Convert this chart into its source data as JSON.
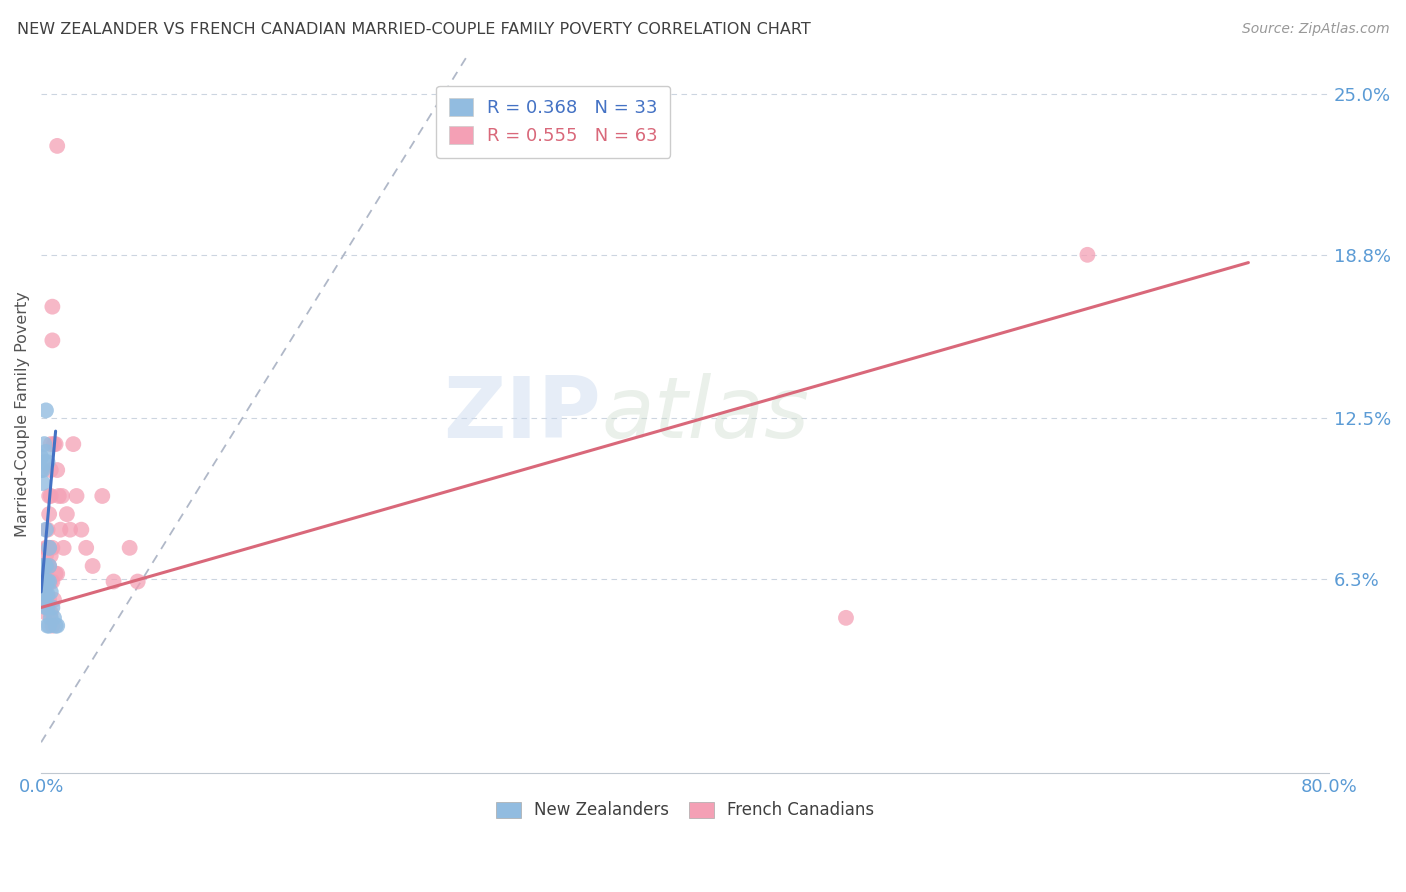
{
  "title": "NEW ZEALANDER VS FRENCH CANADIAN MARRIED-COUPLE FAMILY POVERTY CORRELATION CHART",
  "source": "Source: ZipAtlas.com",
  "ylabel": "Married-Couple Family Poverty",
  "nz_color": "#92bce0",
  "fc_color": "#f4a0b5",
  "nz_line_color": "#4472c4",
  "fc_line_color": "#d9687a",
  "dashed_line_color": "#b0b8c8",
  "title_color": "#404040",
  "axis_label_color": "#5b9bd5",
  "grid_color": "#ccd5e0",
  "xlim": [
    0.0,
    0.8
  ],
  "ylim": [
    -0.012,
    0.265
  ],
  "ytick_vals": [
    0.0,
    0.063,
    0.125,
    0.188,
    0.25
  ],
  "ytick_labels": [
    "",
    "6.3%",
    "12.5%",
    "18.8%",
    "25.0%"
  ],
  "nz_points_x": [
    0.0,
    0.0,
    0.0,
    0.001,
    0.001,
    0.001,
    0.001,
    0.002,
    0.002,
    0.002,
    0.002,
    0.003,
    0.003,
    0.003,
    0.003,
    0.003,
    0.003,
    0.003,
    0.004,
    0.004,
    0.004,
    0.004,
    0.004,
    0.005,
    0.005,
    0.005,
    0.005,
    0.006,
    0.006,
    0.007,
    0.008,
    0.009,
    0.01
  ],
  "nz_points_y": [
    0.11,
    0.105,
    0.065,
    0.105,
    0.1,
    0.068,
    0.062,
    0.115,
    0.108,
    0.062,
    0.057,
    0.128,
    0.112,
    0.082,
    0.068,
    0.062,
    0.057,
    0.052,
    0.108,
    0.062,
    0.057,
    0.052,
    0.045,
    0.075,
    0.068,
    0.062,
    0.045,
    0.058,
    0.048,
    0.052,
    0.048,
    0.045,
    0.045
  ],
  "fc_points_x": [
    0.0,
    0.0,
    0.0,
    0.001,
    0.001,
    0.001,
    0.002,
    0.002,
    0.002,
    0.002,
    0.003,
    0.003,
    0.003,
    0.003,
    0.003,
    0.003,
    0.003,
    0.004,
    0.004,
    0.004,
    0.004,
    0.004,
    0.005,
    0.005,
    0.005,
    0.005,
    0.005,
    0.005,
    0.006,
    0.006,
    0.006,
    0.006,
    0.006,
    0.006,
    0.007,
    0.007,
    0.007,
    0.007,
    0.007,
    0.008,
    0.008,
    0.009,
    0.009,
    0.01,
    0.01,
    0.01,
    0.011,
    0.012,
    0.013,
    0.014,
    0.016,
    0.018,
    0.02,
    0.022,
    0.025,
    0.028,
    0.032,
    0.038,
    0.045,
    0.055,
    0.06,
    0.5,
    0.65
  ],
  "fc_points_y": [
    0.068,
    0.063,
    0.058,
    0.068,
    0.063,
    0.058,
    0.068,
    0.063,
    0.058,
    0.053,
    0.075,
    0.072,
    0.068,
    0.063,
    0.06,
    0.055,
    0.05,
    0.082,
    0.075,
    0.068,
    0.063,
    0.055,
    0.095,
    0.088,
    0.075,
    0.068,
    0.062,
    0.055,
    0.115,
    0.105,
    0.095,
    0.072,
    0.062,
    0.05,
    0.168,
    0.155,
    0.075,
    0.062,
    0.045,
    0.115,
    0.055,
    0.115,
    0.065,
    0.23,
    0.105,
    0.065,
    0.095,
    0.082,
    0.095,
    0.075,
    0.088,
    0.082,
    0.115,
    0.095,
    0.082,
    0.075,
    0.068,
    0.095,
    0.062,
    0.075,
    0.062,
    0.048,
    0.188
  ],
  "nz_line": {
    "x0": 0.0,
    "x1": 0.009,
    "y0": 0.058,
    "y1": 0.12
  },
  "fc_line": {
    "x0": 0.0,
    "x1": 0.75,
    "y0": 0.052,
    "y1": 0.185
  },
  "dash_line": {
    "x0": 0.0,
    "x1": 0.265,
    "y0": 0.0,
    "y1": 0.265
  },
  "watermark_part1": "ZIP",
  "watermark_part2": "atlas",
  "legend_nz_label": "R = 0.368   N = 33",
  "legend_fc_label": "R = 0.555   N = 63",
  "bottom_legend_nz": "New Zealanders",
  "bottom_legend_fc": "French Canadians"
}
